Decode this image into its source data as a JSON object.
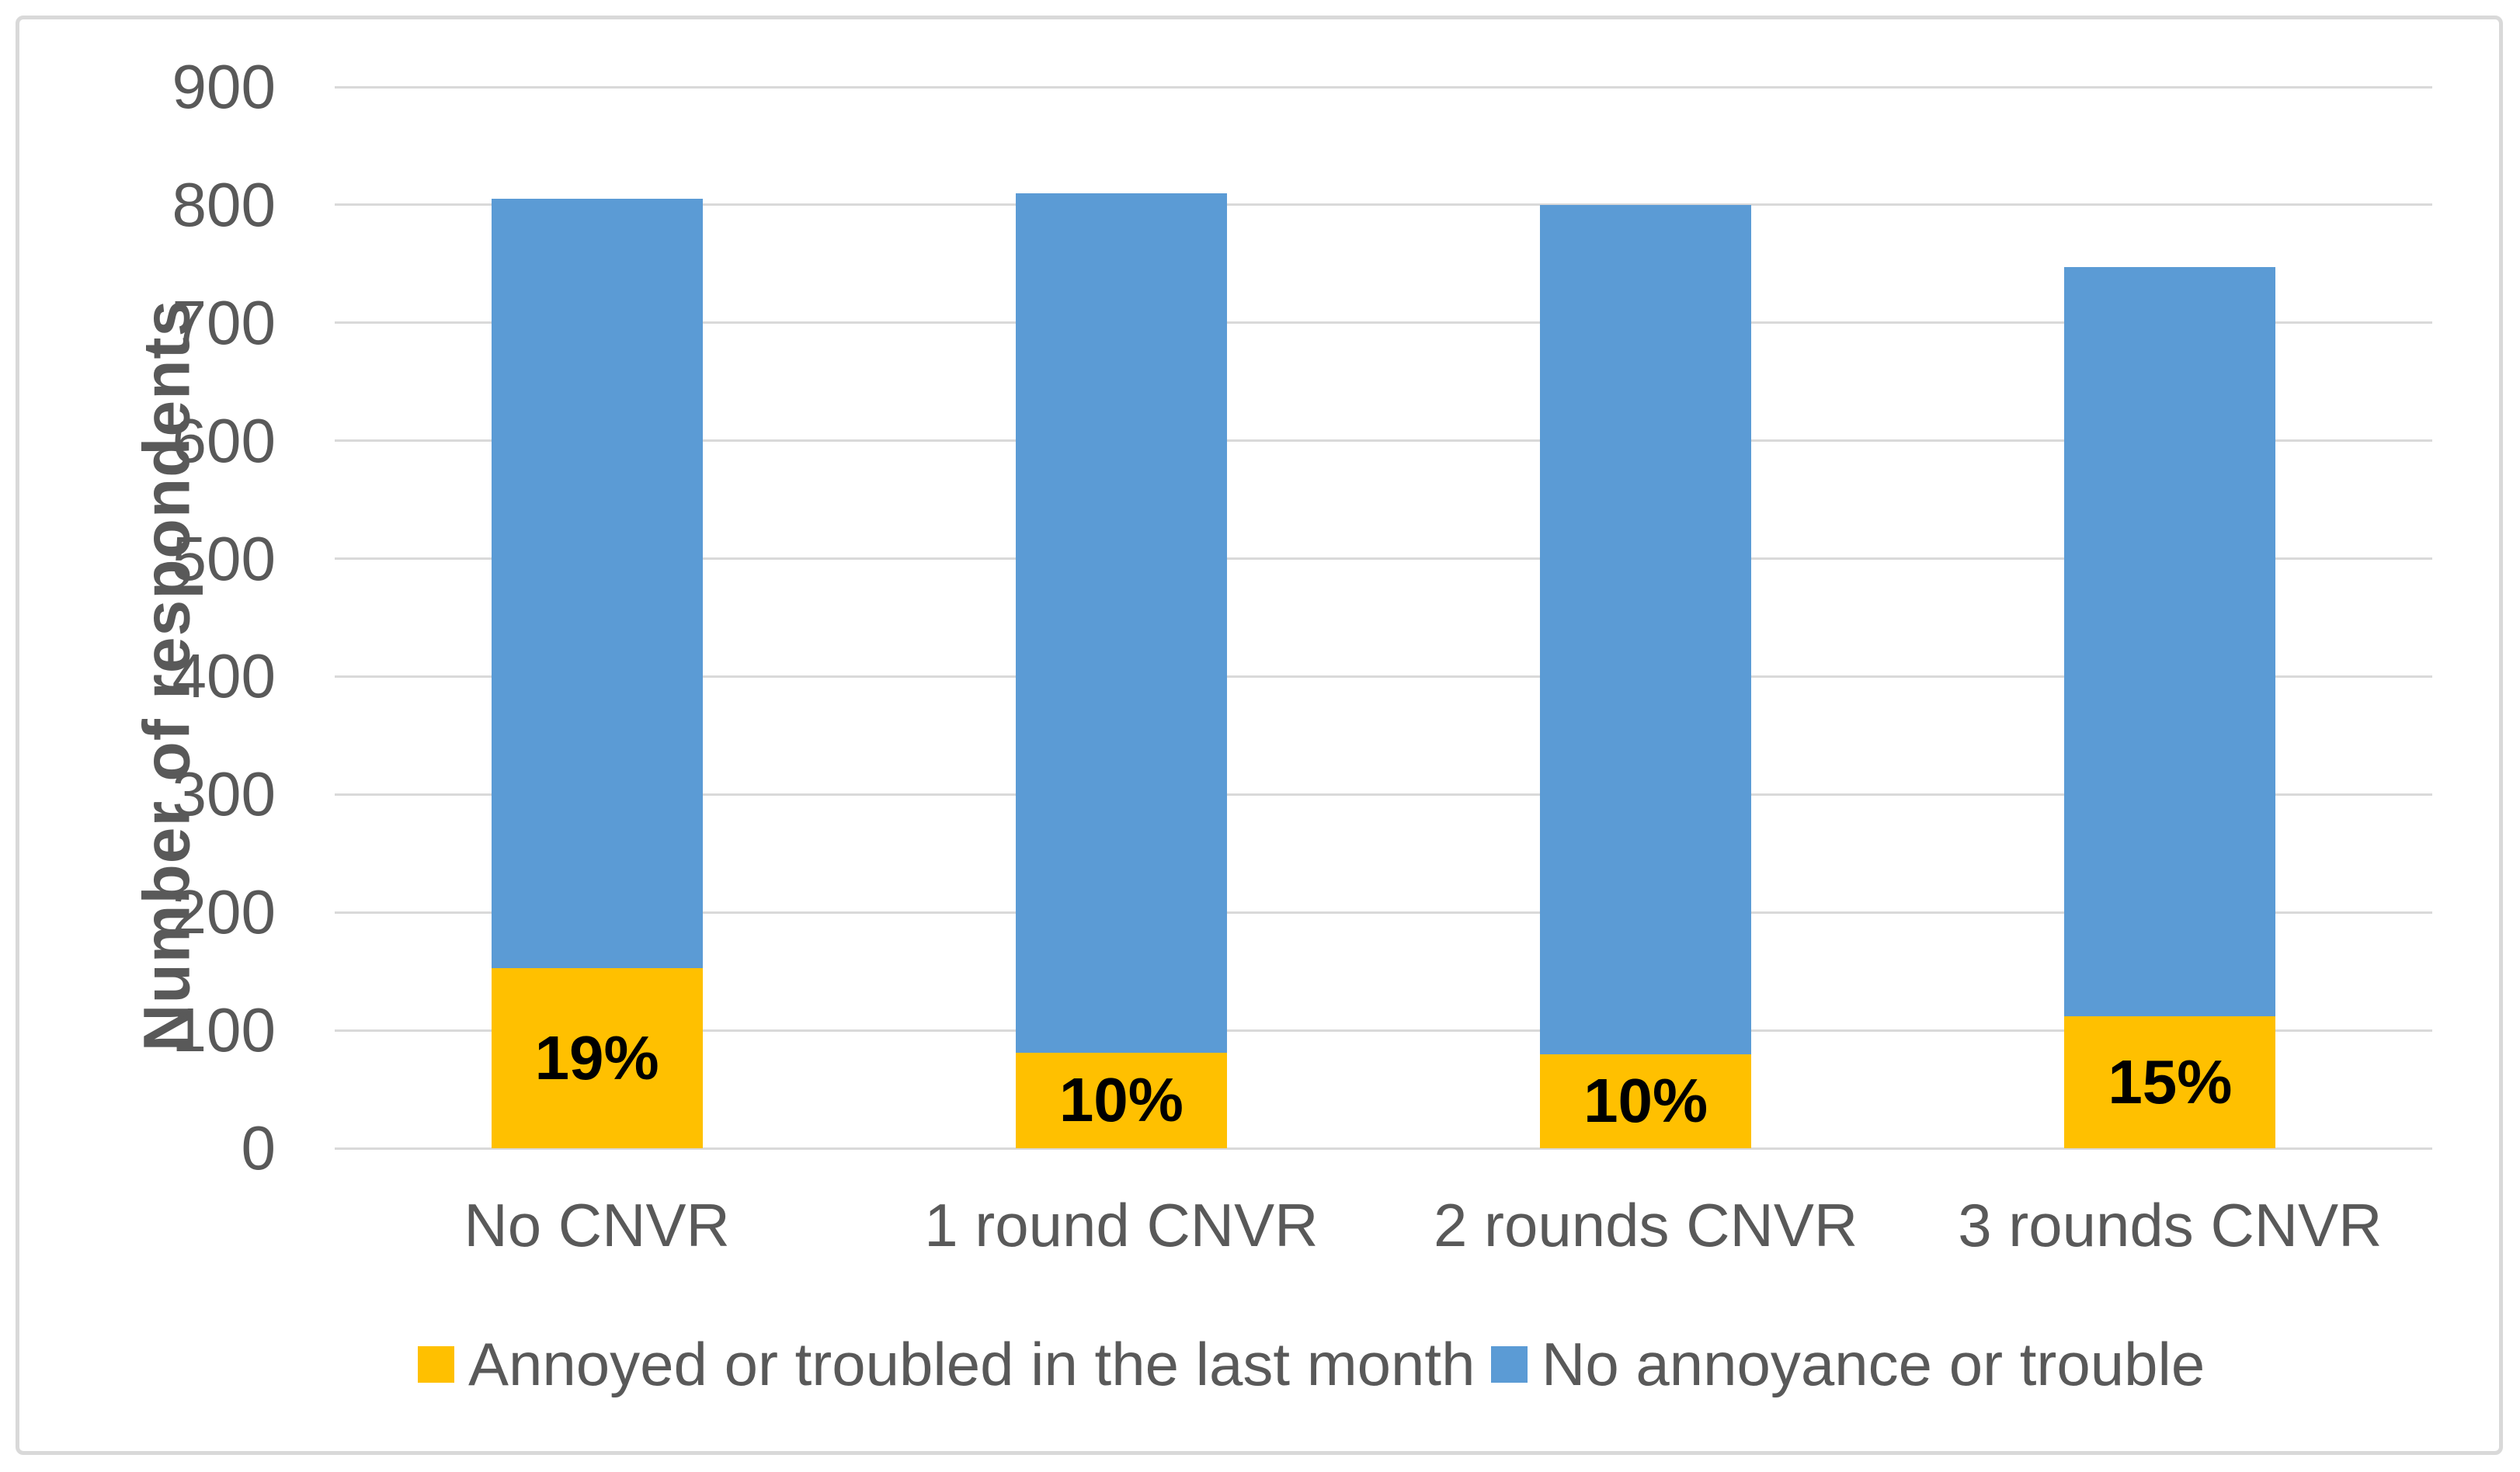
{
  "figure": {
    "background": "#ffffff",
    "border_color": "#d9d9d9"
  },
  "chart_data": {
    "type": "bar",
    "stacked": true,
    "title": "",
    "xlabel": "",
    "ylabel": "Number of respondents",
    "ylim": [
      0,
      900
    ],
    "yticks": [
      0,
      100,
      200,
      300,
      400,
      500,
      600,
      700,
      800,
      900
    ],
    "grid": true,
    "gridline_color": "#d9d9d9",
    "legend_position": "bottom",
    "axis_text_color": "#595959",
    "data_label_color": "#000000",
    "categories": [
      "No CNVR",
      "1 round CNVR",
      "2 rounds CNVR",
      "3 rounds CNVR"
    ],
    "series": [
      {
        "name": "Annoyed or troubled in the last month",
        "color": "#FFC000",
        "values": [
          153,
          81,
          80,
          112
        ],
        "data_labels": [
          "19%",
          "10%",
          "10%",
          "15%"
        ]
      },
      {
        "name": "No annoyance or trouble",
        "color": "#5B9BD5",
        "values": [
          652,
          729,
          720,
          635
        ],
        "data_labels": [
          "",
          "",
          "",
          ""
        ]
      }
    ],
    "totals": [
      805,
      810,
      800,
      747
    ]
  },
  "legend": {
    "item1_label": "Annoyed or troubled in the last month",
    "item2_label": "No annoyance or trouble"
  }
}
